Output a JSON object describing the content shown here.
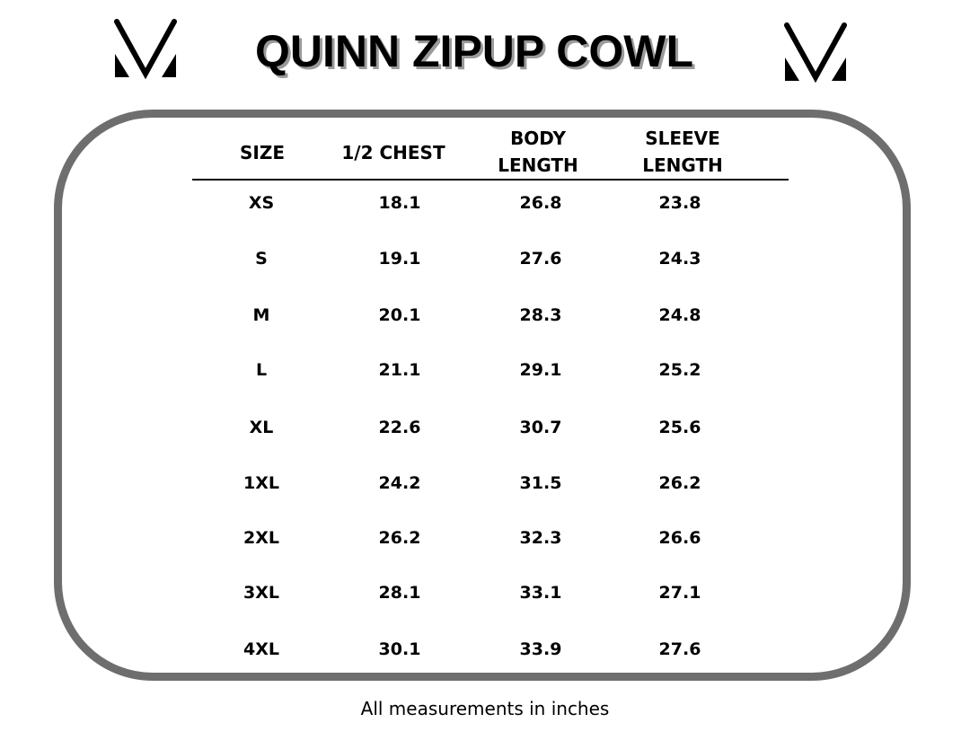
{
  "title": "QUINN ZIPUP COWL",
  "logo": {
    "icon": "brand-v-logo"
  },
  "table": {
    "headers": [
      "SIZE",
      "1/2 CHEST",
      "BODY\nLENGTH",
      "SLEEVE\nLENGTH"
    ],
    "header_lines": [
      [
        "SIZE"
      ],
      [
        "1/2 CHEST"
      ],
      [
        "BODY",
        "LENGTH"
      ],
      [
        "SLEEVE",
        "LENGTH"
      ]
    ],
    "rows": [
      [
        "XS",
        "18.1",
        "26.8",
        "23.8"
      ],
      [
        "S",
        "19.1",
        "27.6",
        "24.3"
      ],
      [
        "M",
        "20.1",
        "28.3",
        "24.8"
      ],
      [
        "L",
        "21.1",
        "29.1",
        "25.2"
      ],
      [
        "XL",
        "22.6",
        "30.7",
        "25.6"
      ],
      [
        "1XL",
        "24.2",
        "31.5",
        "26.2"
      ],
      [
        "2XL",
        "26.2",
        "32.3",
        "26.6"
      ],
      [
        "3XL",
        "28.1",
        "33.1",
        "27.1"
      ],
      [
        "4XL",
        "30.1",
        "33.9",
        "27.6"
      ]
    ]
  },
  "footnote": "All measurements in inches",
  "colors": {
    "frame": "#6e6e6e",
    "title_shadow": "#9a9a9a"
  }
}
